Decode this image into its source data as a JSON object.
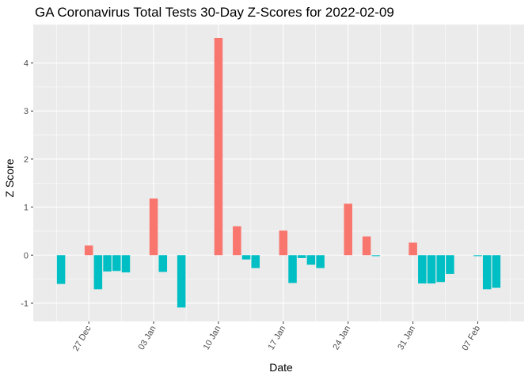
{
  "chart_data": {
    "type": "bar",
    "title": "GA Coronavirus Total Tests 30-Day Z-Scores for 2022-02-09",
    "xlabel": "Date",
    "ylabel": "Z Score",
    "x_dates": [
      "2021-12-24",
      "2021-12-27",
      "2021-12-28",
      "2021-12-29",
      "2021-12-30",
      "2021-12-31",
      "2022-01-03",
      "2022-01-04",
      "2022-01-06",
      "2022-01-10",
      "2022-01-12",
      "2022-01-13",
      "2022-01-14",
      "2022-01-17",
      "2022-01-18",
      "2022-01-19",
      "2022-01-20",
      "2022-01-21",
      "2022-01-24",
      "2022-01-26",
      "2022-01-27",
      "2022-01-31",
      "2022-02-01",
      "2022-02-02",
      "2022-02-03",
      "2022-02-04",
      "2022-02-07",
      "2022-02-08",
      "2022-02-09"
    ],
    "values": [
      -0.6,
      0.2,
      -0.71,
      -0.34,
      -0.33,
      -0.36,
      1.18,
      -0.35,
      -1.09,
      4.52,
      0.6,
      -0.09,
      -0.27,
      0.51,
      -0.58,
      -0.06,
      -0.2,
      -0.27,
      1.07,
      0.39,
      -0.02,
      0.26,
      -0.59,
      -0.59,
      -0.56,
      -0.39,
      -0.02,
      -0.71,
      -0.68
    ],
    "positive_color": "#F8766D",
    "negative_color": "#00BFC4",
    "x_tick_labels": [
      {
        "date": "2021-12-27",
        "label": "27 Dec"
      },
      {
        "date": "2022-01-03",
        "label": "03 Jan"
      },
      {
        "date": "2022-01-10",
        "label": "10 Jan"
      },
      {
        "date": "2022-01-17",
        "label": "17 Jan"
      },
      {
        "date": "2022-01-24",
        "label": "24 Jan"
      },
      {
        "date": "2022-01-31",
        "label": "31 Jan"
      },
      {
        "date": "2022-02-07",
        "label": "07 Feb"
      }
    ],
    "y_ticks": [
      -1,
      0,
      1,
      2,
      3,
      4
    ],
    "xlim": [
      "2021-12-21",
      "2022-02-12"
    ],
    "ylim": [
      -1.38,
      4.8
    ],
    "grid": true,
    "background": "#EBEBEB",
    "legend": "none"
  }
}
